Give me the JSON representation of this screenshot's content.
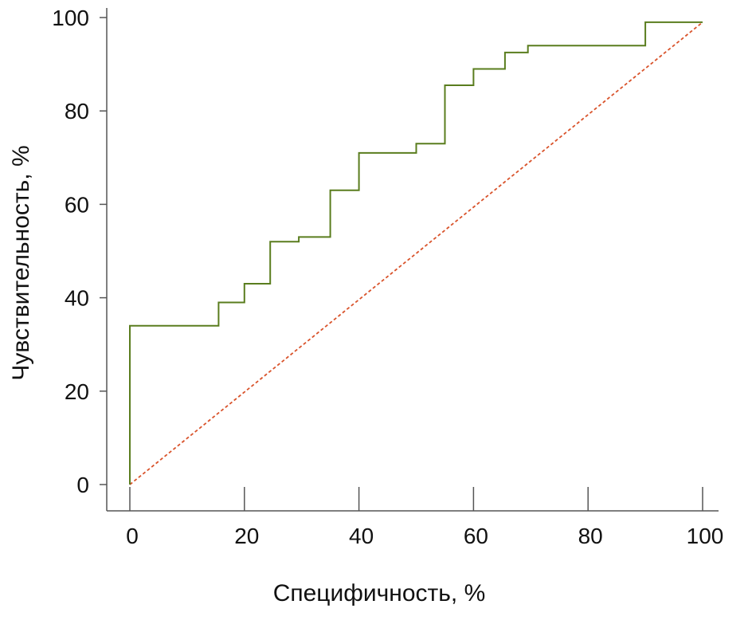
{
  "chart_data": {
    "type": "line",
    "title": "",
    "xlabel": "Специфичность, %",
    "ylabel": "Чувствительность, %",
    "xlim": [
      0,
      100
    ],
    "ylim": [
      0,
      100
    ],
    "x_ticks": [
      "0",
      "20",
      "40",
      "60",
      "80",
      "100"
    ],
    "y_ticks": [
      "0",
      "20",
      "40",
      "60",
      "80",
      "100"
    ],
    "grid": false,
    "series": [
      {
        "style": "step",
        "color": "#5a7d1e",
        "points": [
          [
            0,
            0
          ],
          [
            0,
            34
          ],
          [
            15.5,
            34
          ],
          [
            15.5,
            39
          ],
          [
            20,
            39
          ],
          [
            20,
            43
          ],
          [
            24.5,
            43
          ],
          [
            24.5,
            52
          ],
          [
            29.5,
            52
          ],
          [
            29.5,
            53
          ],
          [
            35,
            53
          ],
          [
            35,
            63
          ],
          [
            40,
            63
          ],
          [
            40,
            71
          ],
          [
            50,
            71
          ],
          [
            50,
            73
          ],
          [
            55,
            73
          ],
          [
            55,
            85.5
          ],
          [
            60,
            85.5
          ],
          [
            60,
            89
          ],
          [
            65.5,
            89
          ],
          [
            65.5,
            92.5
          ],
          [
            69.5,
            92.5
          ],
          [
            69.5,
            94
          ],
          [
            90,
            94
          ],
          [
            90,
            99
          ],
          [
            100,
            99
          ]
        ]
      },
      {
        "style": "dashed",
        "color": "#d9532b",
        "points": [
          [
            0,
            0
          ],
          [
            100,
            99
          ]
        ]
      }
    ]
  }
}
